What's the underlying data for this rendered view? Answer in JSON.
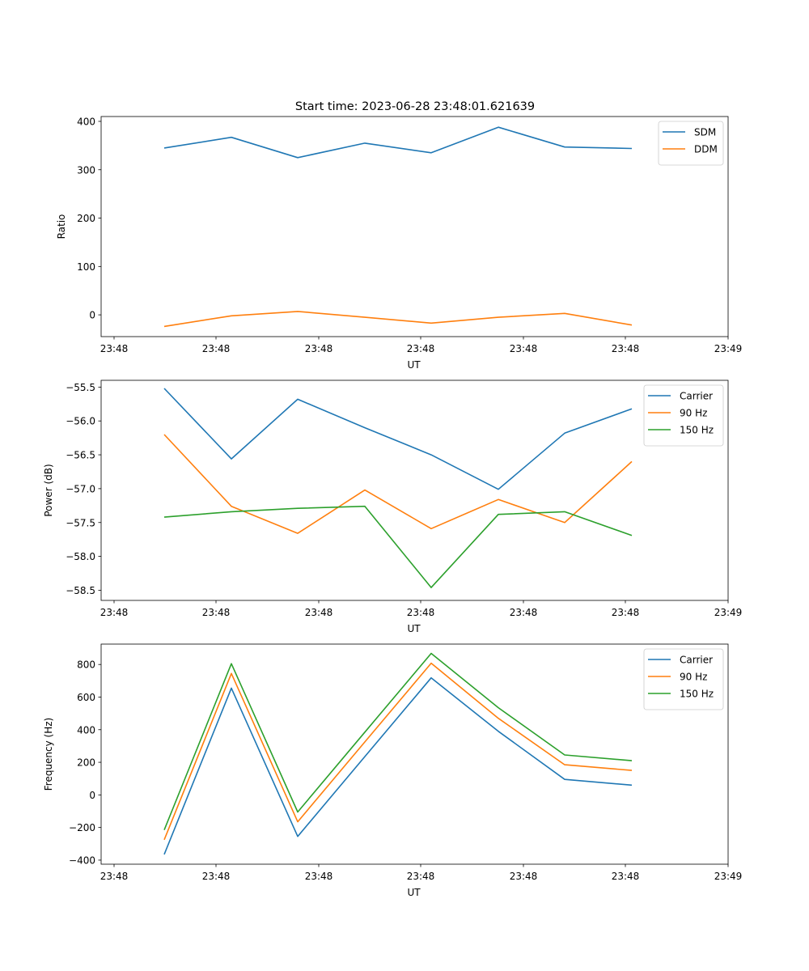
{
  "title": "Start time: 2023-06-28 23:48:01.621639",
  "colors": {
    "blue": "#1f77b4",
    "orange": "#ff7f0e",
    "green": "#2ca02c"
  },
  "chart_data": [
    {
      "type": "line",
      "xlabel": "UT",
      "ylabel": "Ratio",
      "xticks": [
        "23:48",
        "23:48",
        "23:48",
        "23:48",
        "23:48",
        "23:48",
        "23:49"
      ],
      "yticks": [
        0,
        100,
        200,
        300,
        400
      ],
      "ylim": [
        -45,
        410
      ],
      "legend": "top-right",
      "series": [
        {
          "name": "SDM",
          "color": "#1f77b4",
          "values": [
            345,
            367,
            325,
            355,
            335,
            388,
            347,
            344
          ]
        },
        {
          "name": "DDM",
          "color": "#ff7f0e",
          "values": [
            -24,
            -2,
            7,
            -5,
            -17,
            -5,
            3,
            -21
          ]
        }
      ]
    },
    {
      "type": "line",
      "xlabel": "UT",
      "ylabel": "Power (dB)",
      "xticks": [
        "23:48",
        "23:48",
        "23:48",
        "23:48",
        "23:48",
        "23:48",
        "23:49"
      ],
      "yticks": [
        -55.5,
        -56.0,
        -56.5,
        -57.0,
        -57.5,
        -58.0,
        -58.5
      ],
      "ylim": [
        -58.65,
        -55.4
      ],
      "legend": "top-right",
      "series": [
        {
          "name": "Carrier",
          "color": "#1f77b4",
          "values": [
            -55.52,
            -56.56,
            -55.68,
            -56.1,
            -56.5,
            -57.01,
            -56.18,
            -55.82
          ]
        },
        {
          "name": "90 Hz",
          "color": "#ff7f0e",
          "values": [
            -56.2,
            -57.26,
            -57.66,
            -57.02,
            -57.59,
            -57.16,
            -57.5,
            -56.6
          ]
        },
        {
          "name": "150 Hz",
          "color": "#2ca02c",
          "values": [
            -57.42,
            -57.34,
            -57.29,
            -57.26,
            -58.46,
            -57.38,
            -57.34,
            -57.69
          ]
        }
      ]
    },
    {
      "type": "line",
      "xlabel": "UT",
      "ylabel": "Frequency (Hz)",
      "xticks": [
        "23:48",
        "23:48",
        "23:48",
        "23:48",
        "23:48",
        "23:48",
        "23:49"
      ],
      "yticks": [
        800,
        600,
        400,
        200,
        0,
        -200,
        -400
      ],
      "ylim": [
        -425,
        925
      ],
      "legend": "top-right",
      "series": [
        {
          "name": "Carrier",
          "color": "#1f77b4",
          "values": [
            -365,
            655,
            -255,
            235,
            718,
            390,
            95,
            60
          ]
        },
        {
          "name": "90 Hz",
          "color": "#ff7f0e",
          "values": [
            -275,
            745,
            -165,
            325,
            808,
            470,
            185,
            150
          ]
        },
        {
          "name": "150 Hz",
          "color": "#2ca02c",
          "values": [
            -215,
            805,
            -105,
            385,
            868,
            535,
            245,
            210
          ]
        }
      ]
    }
  ]
}
